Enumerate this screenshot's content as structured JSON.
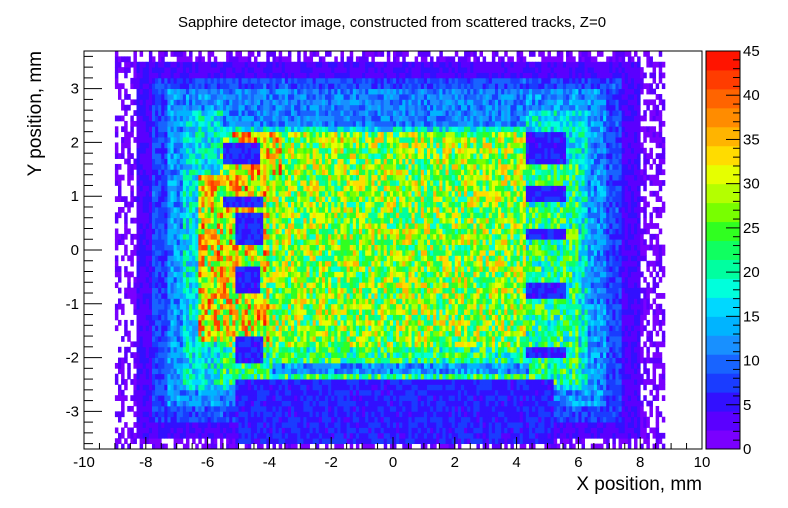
{
  "chart_data": {
    "type": "heatmap",
    "title": "Sapphire detector image, constructed from scattered tracks, Z=0",
    "xlabel": "X position, mm",
    "ylabel": "Y position, mm",
    "xlim": [
      -10,
      10
    ],
    "ylim": [
      -3.7,
      3.7
    ],
    "x_ticks": [
      "-10",
      "-8",
      "-6",
      "-4",
      "-2",
      "0",
      "2",
      "4",
      "6",
      "8",
      "10"
    ],
    "y_ticks": [
      "-3",
      "-2",
      "-1",
      "0",
      "1",
      "2",
      "3"
    ],
    "z_range": [
      0,
      45
    ],
    "z_ticks": [
      "0",
      "5",
      "10",
      "15",
      "20",
      "25",
      "30",
      "35",
      "40",
      "45"
    ],
    "palette": [
      "#7a00ff",
      "#5a00ff",
      "#3210ff",
      "#1a3cff",
      "#1864ff",
      "#1890ff",
      "#00b4ff",
      "#00d8ff",
      "#00ffdc",
      "#00ffa0",
      "#10ff60",
      "#30ff20",
      "#78ff00",
      "#b4ff00",
      "#e6ff00",
      "#ffdc00",
      "#ffb400",
      "#ff8c00",
      "#ff6400",
      "#ff3c00",
      "#ff1400"
    ],
    "grid": false,
    "legend": "color-scale-right",
    "regions": [
      {
        "x": [
          -9.0,
          8.8
        ],
        "y": [
          -3.7,
          3.7
        ],
        "level": 1.5
      },
      {
        "x": [
          -8.3,
          8.0
        ],
        "y": [
          -3.5,
          3.5
        ],
        "level": 4
      },
      {
        "x": [
          -7.8,
          7.4
        ],
        "y": [
          -3.2,
          3.25
        ],
        "level": 8
      },
      {
        "x": [
          -7.3,
          6.9
        ],
        "y": [
          -2.9,
          3.0
        ],
        "level": 12
      },
      {
        "x": [
          -6.8,
          6.3
        ],
        "y": [
          -2.6,
          2.6
        ],
        "level": 17
      },
      {
        "x": [
          -5.6,
          6.0
        ],
        "y": [
          -2.45,
          1.55
        ],
        "level": 22
      },
      {
        "x": [
          -5.6,
          4.3
        ],
        "y": [
          -1.75,
          2.25
        ],
        "level": 27
      },
      {
        "x": [
          -6.3,
          -4.0
        ],
        "y": [
          -1.7,
          1.4
        ],
        "level": 32
      },
      {
        "x": [
          -5.2,
          -3.6
        ],
        "y": [
          1.4,
          2.2
        ],
        "level": 33
      },
      {
        "x": [
          -5.5,
          -4.3
        ],
        "y": [
          1.65,
          2.0
        ],
        "level": 6
      },
      {
        "x": [
          -5.3,
          -4.2
        ],
        "y": [
          2.3,
          2.9
        ],
        "level": 7
      },
      {
        "x": [
          -5.5,
          -4.2
        ],
        "y": [
          0.8,
          1.0
        ],
        "level": 6
      },
      {
        "x": [
          -5.1,
          -4.2
        ],
        "y": [
          0.1,
          0.75
        ],
        "level": 6
      },
      {
        "x": [
          -5.1,
          -4.3
        ],
        "y": [
          -0.85,
          -0.35
        ],
        "level": 6
      },
      {
        "x": [
          -5.1,
          -4.2
        ],
        "y": [
          -2.1,
          -1.6
        ],
        "level": 6
      },
      {
        "x": [
          -5.1,
          5.2
        ],
        "y": [
          -3.65,
          -2.4
        ],
        "level": 6
      },
      {
        "x": [
          -3.9,
          4.4
        ],
        "y": [
          -2.25,
          -2.05
        ],
        "level": 12
      },
      {
        "x": [
          4.3,
          5.6
        ],
        "y": [
          1.65,
          2.25
        ],
        "level": 6
      },
      {
        "x": [
          4.3,
          5.6
        ],
        "y": [
          0.95,
          1.25
        ],
        "level": 6
      },
      {
        "x": [
          4.3,
          5.6
        ],
        "y": [
          0.15,
          0.45
        ],
        "level": 6
      },
      {
        "x": [
          4.3,
          5.6
        ],
        "y": [
          -0.9,
          -0.6
        ],
        "level": 6
      },
      {
        "x": [
          4.3,
          5.6
        ],
        "y": [
          -2.0,
          -1.75
        ],
        "level": 6
      },
      {
        "x": [
          -5.5,
          4.3
        ],
        "y": [
          2.35,
          3.0
        ],
        "level": 11
      }
    ]
  }
}
